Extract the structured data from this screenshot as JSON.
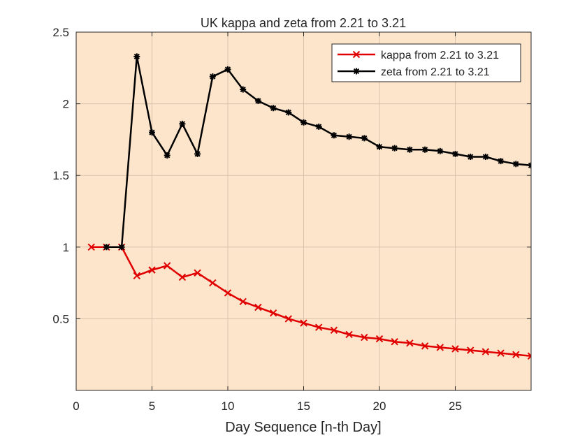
{
  "chart_data": {
    "type": "line",
    "title": "UK kappa and zeta from 2.21 to 3.21",
    "xlabel": "Day Sequence [n-th Day]",
    "ylabel": "",
    "xlim": [
      0,
      30
    ],
    "ylim": [
      0,
      2.5
    ],
    "xticks": [
      0,
      5,
      10,
      15,
      20,
      25
    ],
    "yticks": [
      0.5,
      1,
      1.5,
      2,
      2.5
    ],
    "xtick_labels": [
      "0",
      "5",
      "10",
      "15",
      "20",
      "25"
    ],
    "ytick_labels": [
      "0.5",
      "1",
      "1.5",
      "2",
      "2.5"
    ],
    "grid": true,
    "legend_position": "top-right",
    "background_color": "#fde5cc",
    "series": [
      {
        "name": "kappa from 2.21 to 3.21",
        "color": "#e00000",
        "marker": "x",
        "x": [
          1,
          2,
          3,
          4,
          5,
          6,
          7,
          8,
          9,
          10,
          11,
          12,
          13,
          14,
          15,
          16,
          17,
          18,
          19,
          20,
          21,
          22,
          23,
          24,
          25,
          26,
          27,
          28,
          29,
          30
        ],
        "y": [
          1.0,
          1.0,
          1.0,
          0.8,
          0.84,
          0.87,
          0.79,
          0.82,
          0.75,
          0.68,
          0.62,
          0.58,
          0.54,
          0.5,
          0.47,
          0.44,
          0.42,
          0.39,
          0.37,
          0.36,
          0.34,
          0.33,
          0.31,
          0.3,
          0.29,
          0.28,
          0.27,
          0.26,
          0.25,
          0.24
        ]
      },
      {
        "name": "zeta from 2.21 to 3.21",
        "color": "#000000",
        "marker": "asterisk",
        "x": [
          2,
          3,
          4,
          5,
          6,
          7,
          8,
          9,
          10,
          11,
          12,
          13,
          14,
          15,
          16,
          17,
          18,
          19,
          20,
          21,
          22,
          23,
          24,
          25,
          26,
          27,
          28,
          29,
          30
        ],
        "y": [
          1.0,
          1.0,
          2.33,
          1.8,
          1.64,
          1.86,
          1.65,
          2.19,
          2.24,
          2.1,
          2.02,
          1.97,
          1.94,
          1.87,
          1.84,
          1.78,
          1.77,
          1.76,
          1.7,
          1.69,
          1.68,
          1.68,
          1.67,
          1.65,
          1.63,
          1.63,
          1.6,
          1.58,
          1.57
        ]
      }
    ]
  }
}
